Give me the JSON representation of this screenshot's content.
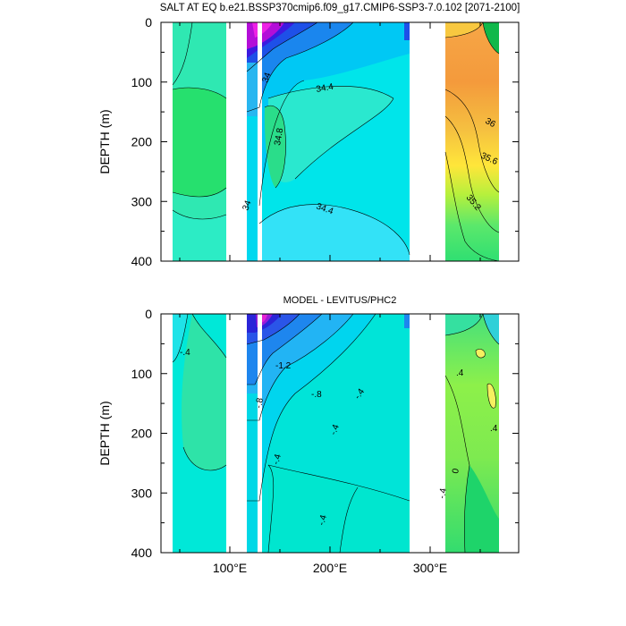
{
  "chart_data": [
    {
      "type": "heatmap",
      "title": "SALT AT EQ b.e21.BSSP370cmip6.f09_g17.CMIP6-SSP3-7.0.102 [2071-2100]",
      "ylabel": "DEPTH (m)",
      "xlabel": "",
      "xlim": [
        30,
        380
      ],
      "ylim": [
        400,
        0
      ],
      "x_ticks": [
        100,
        200,
        300
      ],
      "x_tick_labels": [
        "100°E",
        "200°E",
        "300°E"
      ],
      "y_ticks": [
        0,
        100,
        200,
        300,
        400
      ],
      "y_tick_labels": [
        "0",
        "100",
        "200",
        "300",
        "400"
      ],
      "land_gaps_lon": [
        [
          98,
          118
        ],
        [
          129,
          133
        ],
        [
          280,
          315
        ]
      ],
      "contour_labels": [
        {
          "text": "34",
          "lon": 142,
          "depth": 100
        },
        {
          "text": "34.4",
          "lon": 188,
          "depth": 110
        },
        {
          "text": "34.8",
          "lon": 148,
          "depth": 195
        },
        {
          "text": "34",
          "lon": 124,
          "depth": 310
        },
        {
          "text": "34.4",
          "lon": 198,
          "depth": 312
        },
        {
          "text": "36",
          "lon": 342,
          "depth": 165
        },
        {
          "text": "35.6",
          "lon": 349,
          "depth": 230
        },
        {
          "text": "35.2",
          "lon": 329,
          "depth": 300
        }
      ]
    },
    {
      "type": "heatmap",
      "title": "MODEL - LEVITUS/PHC2",
      "ylabel": "DEPTH (m)",
      "xlabel": "",
      "xlim": [
        30,
        380
      ],
      "ylim": [
        400,
        0
      ],
      "x_ticks": [
        100,
        200,
        300
      ],
      "x_tick_labels": [
        "100°E",
        "200°E",
        "300°E"
      ],
      "y_ticks": [
        0,
        100,
        200,
        300,
        400
      ],
      "y_tick_labels": [
        "0",
        "100",
        "200",
        "300",
        "400"
      ],
      "land_gaps_lon": [
        [
          98,
          118
        ],
        [
          129,
          133
        ],
        [
          280,
          315
        ]
      ],
      "contour_labels": [
        {
          "text": "-.4",
          "lon": 58,
          "depth": 65
        },
        {
          "text": "-1.2",
          "lon": 160,
          "depth": 88
        },
        {
          "text": "-.8",
          "lon": 180,
          "depth": 138
        },
        {
          "text": "-.4",
          "lon": 260,
          "depth": 140
        },
        {
          "text": "-.8",
          "lon": 134,
          "depth": 155
        },
        {
          "text": "-.4",
          "lon": 187,
          "depth": 200
        },
        {
          "text": "-.4",
          "lon": 146,
          "depth": 255
        },
        {
          "text": "-.4",
          "lon": 208,
          "depth": 355
        },
        {
          "text": ".4",
          "lon": 327,
          "depth": 97
        },
        {
          "text": ".4",
          "lon": 352,
          "depth": 190
        },
        {
          "text": "0",
          "lon": 324,
          "depth": 260
        },
        {
          "text": "-.4",
          "lon": 312,
          "depth": 305
        }
      ]
    }
  ]
}
